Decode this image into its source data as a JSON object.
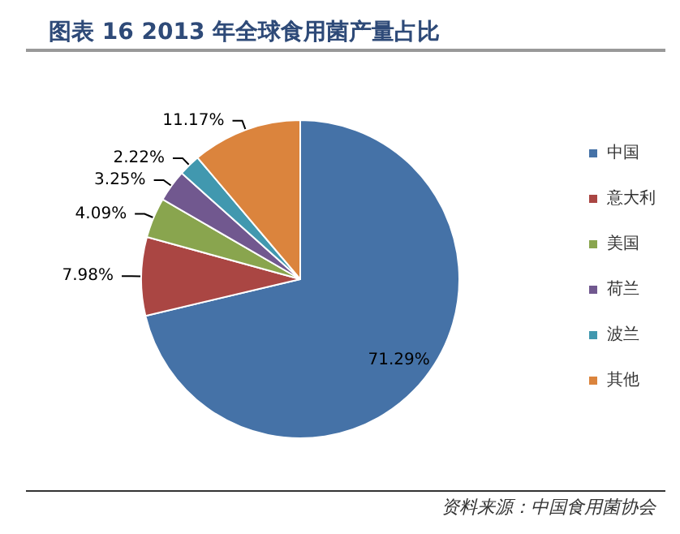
{
  "chart_data": {
    "type": "pie",
    "title": "图表 16 2013 年全球食用菌产量占比",
    "categories": [
      "中国",
      "意大利",
      "美国",
      "荷兰",
      "波兰",
      "其他"
    ],
    "values": [
      71.29,
      7.98,
      4.09,
      3.25,
      2.22,
      11.17
    ],
    "colors": [
      "#4572a7",
      "#aa4643",
      "#89a54e",
      "#71588f",
      "#4198af",
      "#db843d"
    ],
    "value_labels": [
      "71.29%",
      "7.98%",
      "4.09%",
      "3.25%",
      "2.22%",
      "11.17%"
    ],
    "legend": "right",
    "annotations": [
      "资料来源：中国食用菌协会"
    ]
  }
}
